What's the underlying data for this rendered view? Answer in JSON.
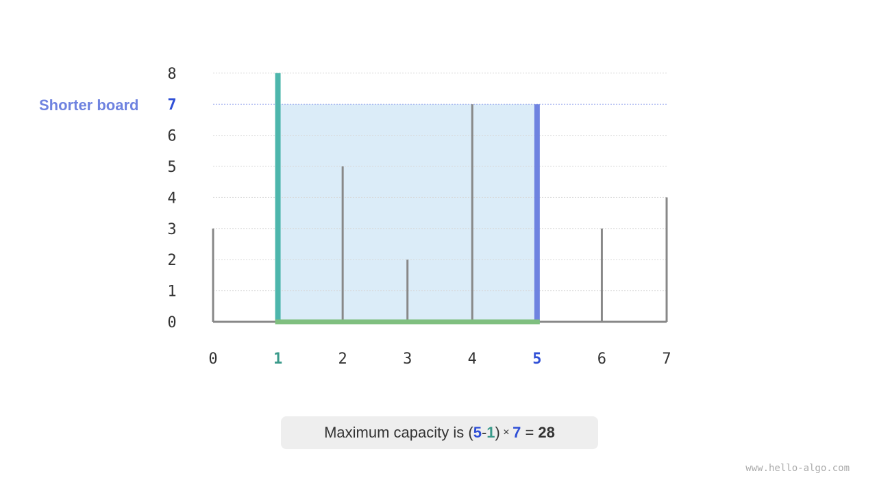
{
  "heights": [
    3,
    8,
    5,
    2,
    7,
    7,
    3,
    4
  ],
  "x_labels": [
    "0",
    "1",
    "2",
    "3",
    "4",
    "5",
    "6",
    "7"
  ],
  "y_labels": [
    "0",
    "1",
    "2",
    "3",
    "4",
    "5",
    "6",
    "7",
    "8"
  ],
  "left_index": 1,
  "right_index": 5,
  "shorter_label": "Shorter board",
  "shorter_value": 7,
  "formula": {
    "prefix": "Maximum capacity is ",
    "open": "(",
    "right": "5",
    "minus": "-",
    "left": "1",
    "close": ")",
    "times": " × ",
    "height": "7",
    "equals": " = ",
    "result": "28"
  },
  "watermark": "www.hello-algo.com",
  "colors": {
    "left": "#4db6ac",
    "right": "#6f83e0",
    "blue_text": "#2f4fd6",
    "teal_text": "#3a9a8a",
    "fill": "#dbecf8",
    "base": "#7fbf7f",
    "bar": "#888888"
  }
}
